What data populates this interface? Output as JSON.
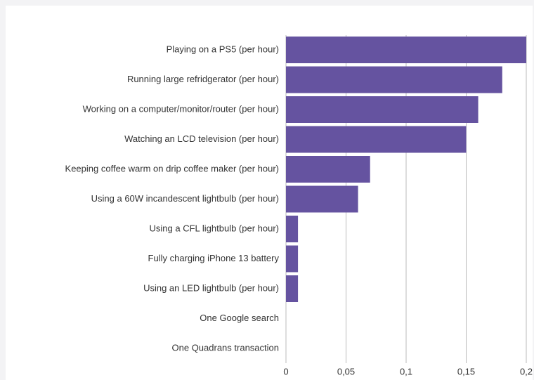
{
  "chart_data": {
    "type": "bar",
    "orientation": "horizontal",
    "categories": [
      "Playing on a PS5 (per hour)",
      "Running large refridgerator (per hour)",
      "Working on a computer/monitor/router (per hour)",
      "Watching an LCD television (per hour)",
      "Keeping coffee warm on drip coffee maker (per hour)",
      "Using a 60W incandescent lightbulb (per hour)",
      "Using a CFL lightbulb (per hour)",
      "Fully charging iPhone 13 battery",
      "Using an LED lightbulb (per hour)",
      "One Google search",
      "One Quadrans transaction"
    ],
    "values": [
      0.2,
      0.18,
      0.16,
      0.15,
      0.07,
      0.06,
      0.01,
      0.01,
      0.01,
      0,
      0
    ],
    "color": "#6553a0",
    "xlim": [
      0,
      0.2
    ],
    "xticks": [
      0,
      {
        "value": 0.05,
        "label": "0,05"
      },
      {
        "value": 0.1,
        "label": "0,1"
      },
      {
        "value": 0.15,
        "label": "0,15"
      },
      {
        "value": 0.2,
        "label": "0,2"
      }
    ],
    "grid": true
  }
}
